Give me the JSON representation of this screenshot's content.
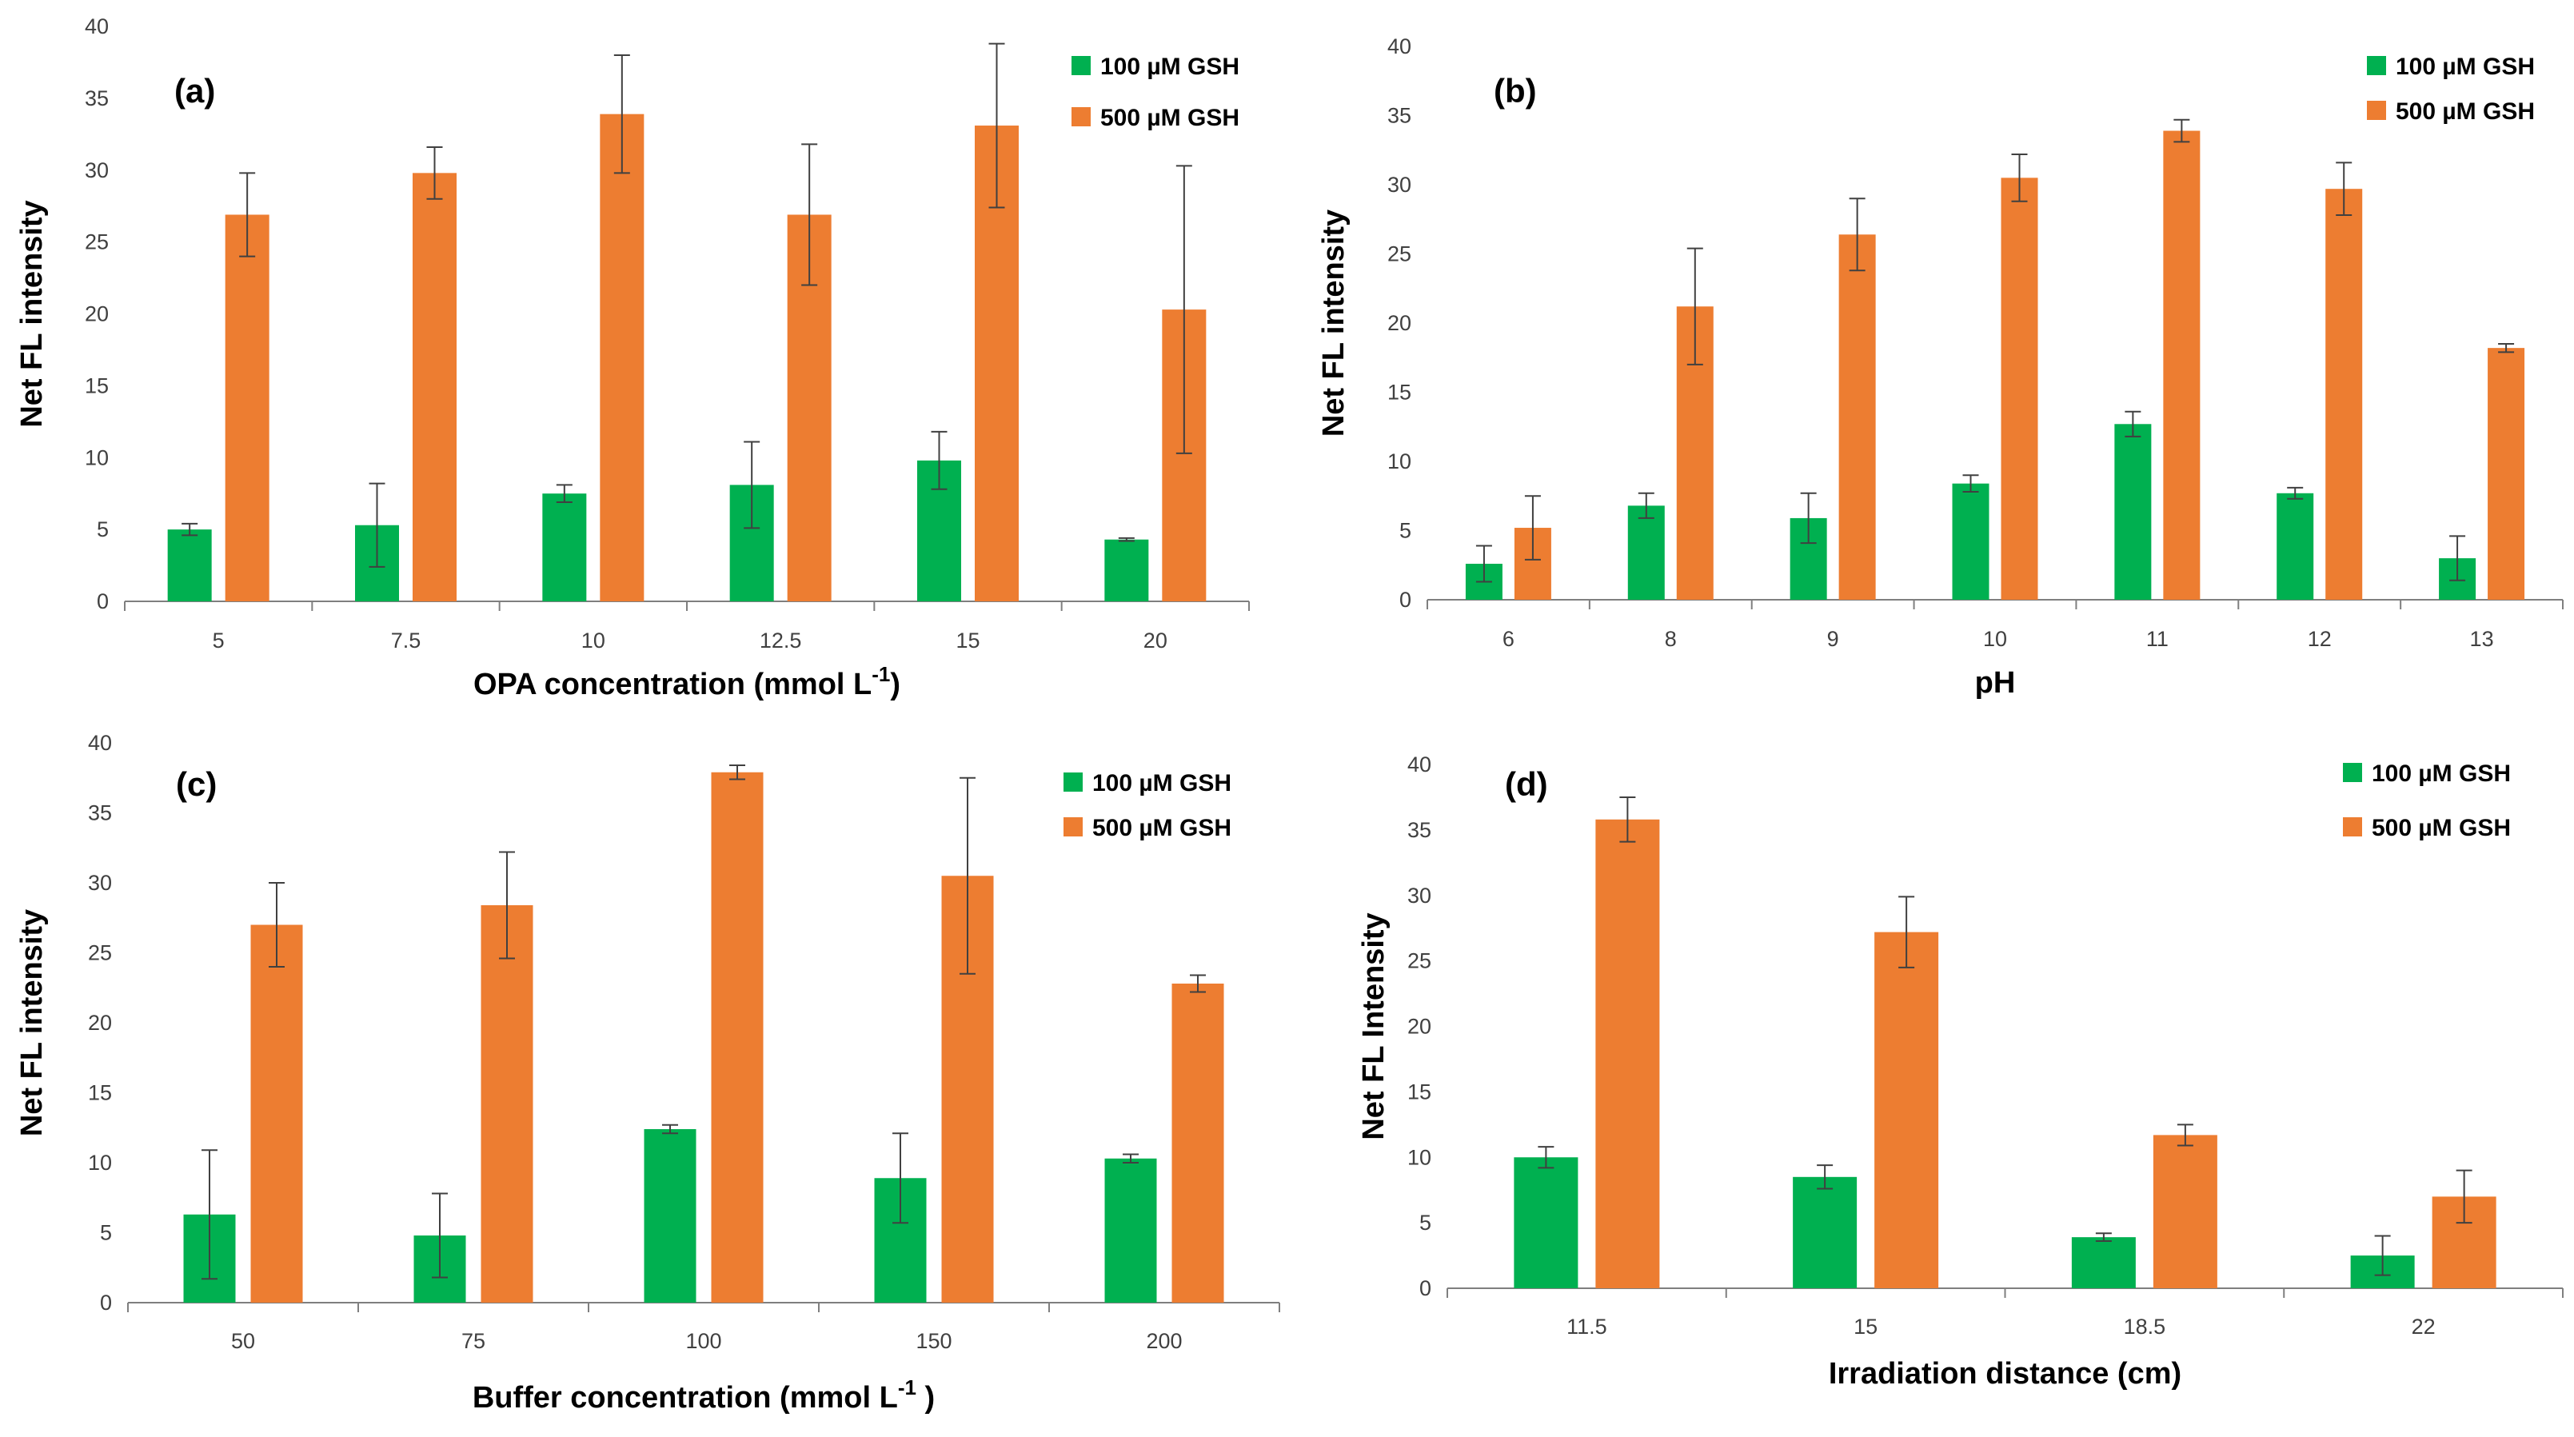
{
  "colors": {
    "series1": "#00B050",
    "series2": "#ED7D31",
    "axis": "#7F7F7F",
    "error": "#404040"
  },
  "charts": [
    {
      "type": "bar",
      "panel_label": "(a)",
      "xlabel": "OPA concentration (mmol L",
      "xlabel_sup": "-1",
      "xlabel_end": ")",
      "ylabel": "Net FL intensity",
      "ylim": [
        0,
        40
      ],
      "yticks": [
        "0",
        "5",
        "10",
        "15",
        "20",
        "25",
        "30",
        "35",
        "40"
      ],
      "categories": [
        "5",
        "7.5",
        "10",
        "12.5",
        "15",
        "20"
      ],
      "series": [
        {
          "name": "100 µM GSH",
          "values": [
            5.0,
            5.3,
            7.5,
            8.1,
            9.8,
            4.3
          ],
          "errors": [
            0.4,
            2.9,
            0.6,
            3.0,
            2.0,
            0.1
          ]
        },
        {
          "name": "500 µM GSH",
          "values": [
            26.9,
            29.8,
            33.9,
            26.9,
            33.1,
            20.3
          ],
          "errors": [
            2.9,
            1.8,
            4.1,
            4.9,
            5.7,
            10.0
          ]
        }
      ]
    },
    {
      "type": "bar",
      "panel_label": "(b)",
      "xlabel": "pH",
      "xlabel_sup": "",
      "xlabel_end": "",
      "ylabel": "Net FL intensity",
      "ylim": [
        0,
        40
      ],
      "yticks": [
        "0",
        "5",
        "10",
        "15",
        "20",
        "25",
        "30",
        "35",
        "40"
      ],
      "categories": [
        "6",
        "8",
        "9",
        "10",
        "11",
        "12",
        "13"
      ],
      "series": [
        {
          "name": "100 µM GSH",
          "values": [
            2.6,
            6.8,
            5.9,
            8.4,
            12.7,
            7.7,
            3.0
          ],
          "errors": [
            1.3,
            0.9,
            1.8,
            0.6,
            0.9,
            0.4,
            1.6
          ]
        },
        {
          "name": "500 µM GSH",
          "values": [
            5.2,
            21.2,
            26.4,
            30.5,
            33.9,
            29.7,
            18.2
          ],
          "errors": [
            2.3,
            4.2,
            2.6,
            1.7,
            0.8,
            1.9,
            0.3
          ]
        }
      ]
    },
    {
      "type": "bar",
      "panel_label": "(c)",
      "xlabel": "Buffer concentration (mmol L",
      "xlabel_sup": "-1",
      "xlabel_end": " )",
      "ylabel": "Net FL intensity",
      "ylim": [
        0,
        40
      ],
      "yticks": [
        "0",
        "5",
        "10",
        "15",
        "20",
        "25",
        "30",
        "35",
        "40"
      ],
      "categories": [
        "50",
        "75",
        "100",
        "150",
        "200"
      ],
      "series": [
        {
          "name": "100 µM GSH",
          "values": [
            6.3,
            4.8,
            12.4,
            8.9,
            10.3
          ],
          "errors": [
            4.6,
            3.0,
            0.3,
            3.2,
            0.3
          ]
        },
        {
          "name": "500 µM GSH",
          "values": [
            27.0,
            28.4,
            37.9,
            30.5,
            22.8
          ],
          "errors": [
            3.0,
            3.8,
            0.5,
            7.0,
            0.6
          ]
        }
      ]
    },
    {
      "type": "bar",
      "panel_label": "(d)",
      "xlabel": "Irradiation distance (cm)",
      "xlabel_sup": "",
      "xlabel_end": "",
      "ylabel": "Net FL Intensity",
      "ylim": [
        0,
        40
      ],
      "yticks": [
        "0",
        "5",
        "10",
        "15",
        "20",
        "25",
        "30",
        "35",
        "40"
      ],
      "categories": [
        "11.5",
        "15",
        "18.5",
        "22"
      ],
      "series": [
        {
          "name": "100 µM GSH",
          "values": [
            10.0,
            8.5,
            3.9,
            2.5
          ],
          "errors": [
            0.8,
            0.9,
            0.3,
            1.5
          ]
        },
        {
          "name": "500 µM GSH",
          "values": [
            35.8,
            27.2,
            11.7,
            7.0
          ],
          "errors": [
            1.7,
            2.7,
            0.8,
            2.0
          ]
        }
      ]
    }
  ]
}
